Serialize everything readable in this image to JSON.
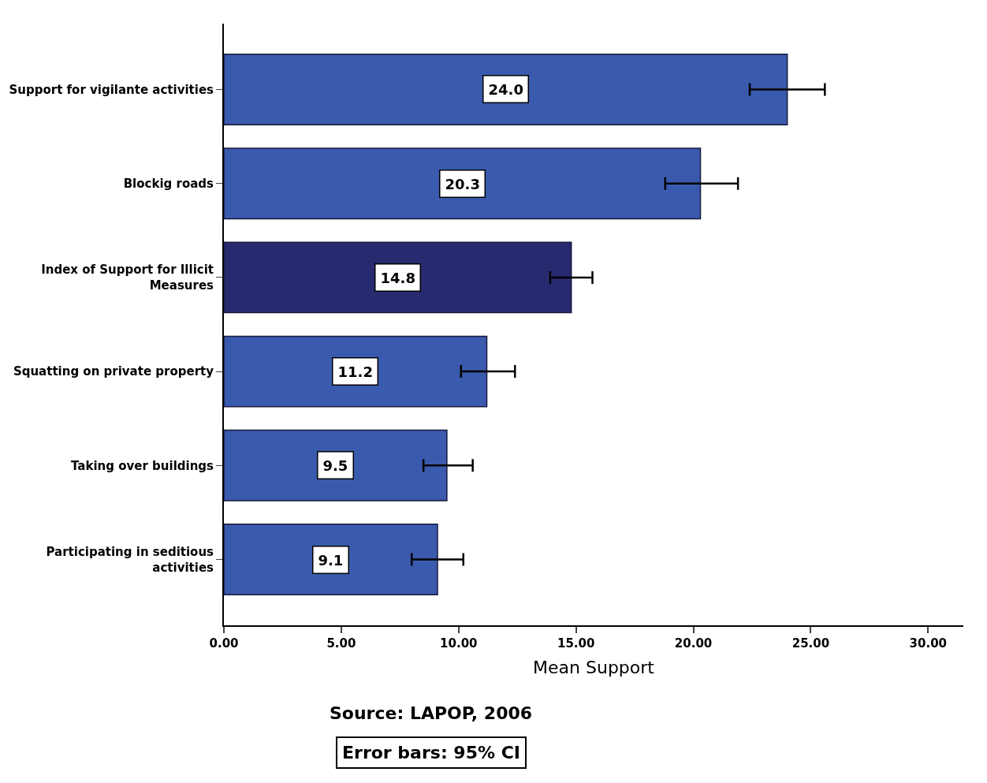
{
  "chart_data": {
    "type": "bar",
    "orientation": "horizontal",
    "categories": [
      "Support for vigilante activities",
      "Blockig roads",
      "Index of Support for Illicit Measures",
      "Squatting on private property",
      "Taking over buildings",
      "Participating in seditious activities"
    ],
    "values": [
      24.0,
      20.3,
      14.8,
      11.2,
      9.5,
      9.1
    ],
    "colors": [
      "#3a5aad",
      "#3a5aad",
      "#282a70",
      "#3a5aad",
      "#3a5aad",
      "#3a5aad"
    ],
    "value_labels": [
      "24.0",
      "20.3",
      "14.8",
      "11.2",
      "9.5",
      "9.1"
    ],
    "errors": [
      [
        22.4,
        25.6
      ],
      [
        18.8,
        21.9
      ],
      [
        13.9,
        15.7
      ],
      [
        10.1,
        12.4
      ],
      [
        8.5,
        10.6
      ],
      [
        8.0,
        10.2
      ]
    ],
    "xlabel": "Mean Support",
    "xlim": [
      0,
      31.5
    ],
    "xticks": [
      {
        "value": 0,
        "label": "0.00"
      },
      {
        "value": 5,
        "label": "5.00"
      },
      {
        "value": 10,
        "label": "10.00"
      },
      {
        "value": 15,
        "label": "15.00"
      },
      {
        "value": 20,
        "label": "20.00"
      },
      {
        "value": 25,
        "label": "25.00"
      },
      {
        "value": 30,
        "label": "30.00"
      }
    ],
    "legend": false,
    "annotations": [
      "Source: LAPOP, 2006",
      "Error bars: 95% CI"
    ]
  }
}
